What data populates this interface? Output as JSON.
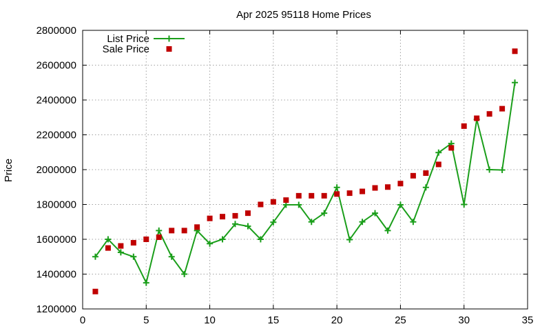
{
  "colors": {
    "list_price": "#1a9e1a",
    "sale_price": "#c00000"
  },
  "chart_data": {
    "type": "scatter",
    "title": "Apr 2025 95118 Home Prices",
    "xlabel": "",
    "ylabel": "Price",
    "xlim": [
      0,
      35
    ],
    "ylim": [
      1200000,
      2800000
    ],
    "xticks": [
      0,
      5,
      10,
      15,
      20,
      25,
      30,
      35
    ],
    "yticks": [
      1200000,
      1400000,
      1600000,
      1800000,
      2000000,
      2200000,
      2400000,
      2600000,
      2800000
    ],
    "grid": true,
    "legend_position": "top-left",
    "series": [
      {
        "name": "List Price",
        "style": "linespoints",
        "marker": "plus",
        "x": [
          1,
          2,
          3,
          4,
          5,
          6,
          7,
          8,
          9,
          10,
          11,
          12,
          13,
          14,
          15,
          16,
          17,
          18,
          19,
          20,
          21,
          22,
          23,
          24,
          25,
          26,
          27,
          28,
          29,
          30,
          31,
          32,
          33,
          34
        ],
        "y": [
          1500000,
          1600000,
          1525000,
          1500000,
          1350000,
          1650000,
          1500000,
          1400000,
          1650000,
          1575000,
          1600000,
          1688000,
          1675000,
          1600000,
          1698000,
          1798000,
          1798000,
          1700000,
          1750000,
          1898000,
          1598000,
          1700000,
          1750000,
          1650000,
          1798000,
          1700000,
          1898000,
          2098000,
          2150000,
          1800000,
          2288000,
          2000000,
          1998000,
          2500000
        ]
      },
      {
        "name": "Sale Price",
        "style": "points",
        "marker": "square",
        "x": [
          1,
          2,
          3,
          4,
          5,
          6,
          7,
          8,
          9,
          10,
          11,
          12,
          13,
          14,
          15,
          16,
          17,
          18,
          19,
          20,
          21,
          22,
          23,
          24,
          25,
          26,
          27,
          28,
          29,
          30,
          31,
          32,
          33,
          34
        ],
        "y": [
          1300000,
          1550000,
          1562000,
          1580000,
          1600000,
          1612000,
          1650000,
          1650000,
          1670000,
          1720000,
          1730000,
          1735000,
          1750000,
          1800000,
          1815000,
          1825000,
          1850000,
          1850000,
          1850000,
          1860000,
          1865000,
          1875000,
          1895000,
          1900000,
          1920000,
          1965000,
          1980000,
          2030000,
          2125000,
          2250000,
          2295000,
          2320000,
          2350000,
          2680000
        ]
      }
    ]
  }
}
